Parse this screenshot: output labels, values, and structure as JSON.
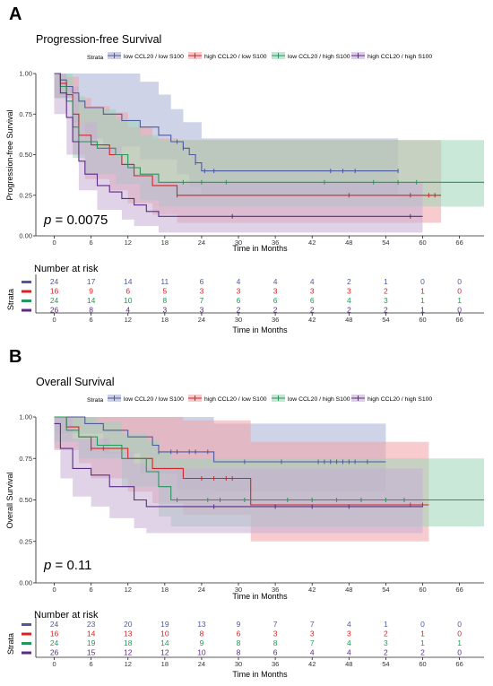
{
  "panels": [
    {
      "letter": "A",
      "title": "Progression-free Survival",
      "legend_label": "Strata",
      "ylabel": "Progression-free Survival",
      "pvalue_prefix": "p",
      "pvalue_text": " = 0.0075",
      "risk_title": "Number at risk",
      "risk_ylabel": "Strata",
      "xlabel": "Time in Months",
      "risk_xlabel": "Time in Months"
    },
    {
      "letter": "B",
      "title": "Overall Survival",
      "legend_label": "Strata",
      "ylabel": "Overall Survival",
      "pvalue_prefix": "p",
      "pvalue_text": " = 0.11",
      "risk_title": "Number at risk",
      "risk_ylabel": "Strata",
      "xlabel": "Time in Months",
      "risk_xlabel": "Time in Months"
    }
  ],
  "chart_data": [
    {
      "type": "line",
      "title": "Progression-free Survival",
      "xlabel": "Time in Months",
      "ylabel": "Progression-free Survival",
      "xlim": [
        -3,
        70
      ],
      "ylim": [
        0,
        1
      ],
      "xticks": [
        0,
        6,
        12,
        18,
        24,
        30,
        36,
        42,
        48,
        54,
        60,
        66
      ],
      "yticks": [
        0.0,
        0.25,
        0.5,
        0.75,
        1.0
      ],
      "ytick_labels": [
        "0.00",
        "0.25",
        "0.50",
        "0.75",
        "1.00"
      ],
      "legend_position": "top",
      "series": [
        {
          "name": "low CCL20 / low S100",
          "color": "#4e5a9c",
          "fill": "#a6aed5",
          "steps": [
            [
              0,
              1.0
            ],
            [
              1,
              0.96
            ],
            [
              2,
              0.92
            ],
            [
              3,
              0.88
            ],
            [
              4,
              0.83
            ],
            [
              5,
              0.79
            ],
            [
              8,
              0.75
            ],
            [
              11,
              0.71
            ],
            [
              14,
              0.67
            ],
            [
              17,
              0.62
            ],
            [
              19,
              0.58
            ],
            [
              21,
              0.54
            ],
            [
              22,
              0.5
            ],
            [
              23,
              0.45
            ],
            [
              24,
              0.4
            ]
          ],
          "end": 56,
          "censors": [
            20,
            21,
            23,
            24.5,
            26,
            45,
            47,
            49,
            56
          ],
          "lower": [
            [
              0,
              0.85
            ],
            [
              3,
              0.7
            ],
            [
              5,
              0.6
            ],
            [
              8,
              0.55
            ],
            [
              14,
              0.47
            ],
            [
              20,
              0.38
            ],
            [
              22,
              0.3
            ],
            [
              24,
              0.25
            ]
          ],
          "upper": [
            [
              0,
              1.0
            ],
            [
              14,
              0.95
            ],
            [
              17,
              0.87
            ],
            [
              19,
              0.78
            ],
            [
              21,
              0.7
            ],
            [
              24,
              0.6
            ]
          ],
          "risk": [
            24,
            17,
            14,
            11,
            6,
            4,
            4,
            4,
            2,
            1,
            0,
            0
          ]
        },
        {
          "name": "high CCL20 / low S100",
          "color": "#d62424",
          "fill": "#f3a3a8",
          "steps": [
            [
              0,
              1.0
            ],
            [
              1,
              0.94
            ],
            [
              2,
              0.87
            ],
            [
              3,
              0.75
            ],
            [
              4,
              0.62
            ],
            [
              6,
              0.56
            ],
            [
              9,
              0.5
            ],
            [
              11,
              0.44
            ],
            [
              13,
              0.37
            ],
            [
              16,
              0.31
            ],
            [
              20,
              0.25
            ]
          ],
          "end": 63,
          "censors": [
            20,
            48,
            58,
            61,
            62
          ],
          "lower": [
            [
              0,
              0.85
            ],
            [
              3,
              0.5
            ],
            [
              5,
              0.35
            ],
            [
              9,
              0.28
            ],
            [
              12,
              0.2
            ],
            [
              16,
              0.13
            ],
            [
              20,
              0.08
            ]
          ],
          "upper": [
            [
              0,
              1.0
            ],
            [
              2,
              0.98
            ],
            [
              4,
              0.85
            ],
            [
              6,
              0.8
            ],
            [
              9,
              0.76
            ],
            [
              12,
              0.67
            ],
            [
              16,
              0.6
            ],
            [
              20,
              0.59
            ]
          ],
          "risk": [
            16,
            9,
            6,
            5,
            3,
            3,
            3,
            3,
            3,
            2,
            1,
            0
          ]
        },
        {
          "name": "low CCL20 / high S100",
          "color": "#27965c",
          "fill": "#9dd5b6",
          "steps": [
            [
              0,
              1.0
            ],
            [
              1,
              0.92
            ],
            [
              2,
              0.83
            ],
            [
              3,
              0.67
            ],
            [
              4,
              0.58
            ],
            [
              7,
              0.54
            ],
            [
              10,
              0.5
            ],
            [
              12,
              0.42
            ],
            [
              14,
              0.38
            ],
            [
              17,
              0.33
            ]
          ],
          "end": 70,
          "censors": [
            21,
            24,
            28,
            44,
            52,
            56,
            59
          ],
          "lower": [
            [
              0,
              0.85
            ],
            [
              3,
              0.48
            ],
            [
              5,
              0.38
            ],
            [
              10,
              0.32
            ],
            [
              14,
              0.22
            ],
            [
              17,
              0.18
            ]
          ],
          "upper": [
            [
              0,
              1.0
            ],
            [
              3,
              0.86
            ],
            [
              5,
              0.78
            ],
            [
              10,
              0.72
            ],
            [
              14,
              0.62
            ],
            [
              17,
              0.59
            ]
          ],
          "risk": [
            24,
            14,
            10,
            8,
            7,
            6,
            6,
            6,
            4,
            3,
            1,
            1
          ]
        },
        {
          "name": "high CCL20 / high S100",
          "color": "#5b2b86",
          "fill": "#c7aed6",
          "steps": [
            [
              0,
              1.0
            ],
            [
              1,
              0.88
            ],
            [
              2,
              0.73
            ],
            [
              3,
              0.58
            ],
            [
              4,
              0.46
            ],
            [
              5,
              0.38
            ],
            [
              7,
              0.31
            ],
            [
              9,
              0.27
            ],
            [
              11,
              0.23
            ],
            [
              13,
              0.19
            ],
            [
              15,
              0.15
            ],
            [
              17,
              0.12
            ]
          ],
          "end": 60,
          "censors": [
            29,
            58
          ],
          "lower": [
            [
              0,
              0.75
            ],
            [
              2,
              0.5
            ],
            [
              4,
              0.28
            ],
            [
              7,
              0.16
            ],
            [
              11,
              0.1
            ],
            [
              13,
              0.06
            ],
            [
              17,
              0.02
            ]
          ],
          "upper": [
            [
              0,
              1.0
            ],
            [
              2,
              0.92
            ],
            [
              4,
              0.7
            ],
            [
              7,
              0.55
            ],
            [
              11,
              0.45
            ],
            [
              13,
              0.38
            ],
            [
              17,
              0.33
            ]
          ],
          "risk": [
            26,
            8,
            4,
            3,
            3,
            2,
            2,
            2,
            2,
            2,
            1,
            0
          ]
        }
      ]
    },
    {
      "type": "line",
      "title": "Overall Survival",
      "xlabel": "Time in Months",
      "ylabel": "Overall Survival",
      "xlim": [
        -3,
        70
      ],
      "ylim": [
        0,
        1
      ],
      "xticks": [
        0,
        6,
        12,
        18,
        24,
        30,
        36,
        42,
        48,
        54,
        60,
        66
      ],
      "yticks": [
        0.0,
        0.25,
        0.5,
        0.75,
        1.0
      ],
      "ytick_labels": [
        "0.00",
        "0.25",
        "0.50",
        "0.75",
        "1.00"
      ],
      "legend_position": "top",
      "series": [
        {
          "name": "low CCL20 / low S100",
          "color": "#4e5a9c",
          "fill": "#a6aed5",
          "steps": [
            [
              0,
              1.0
            ],
            [
              5,
              0.96
            ],
            [
              8,
              0.92
            ],
            [
              12,
              0.88
            ],
            [
              16,
              0.83
            ],
            [
              17,
              0.79
            ],
            [
              26,
              0.73
            ]
          ],
          "end": 54,
          "censors": [
            17,
            19,
            20,
            22,
            23,
            25,
            31,
            37,
            43,
            44,
            45,
            46,
            47,
            48,
            49,
            51
          ],
          "lower": [
            [
              0,
              0.9
            ],
            [
              8,
              0.78
            ],
            [
              14,
              0.66
            ],
            [
              20,
              0.56
            ],
            [
              26,
              0.55
            ]
          ],
          "upper": [
            [
              0,
              1.0
            ],
            [
              26,
              0.96
            ]
          ],
          "risk": [
            24,
            23,
            20,
            19,
            13,
            9,
            7,
            7,
            4,
            1,
            0,
            0
          ]
        },
        {
          "name": "high CCL20 / low S100",
          "color": "#d62424",
          "fill": "#f3a3a8",
          "steps": [
            [
              0,
              1.0
            ],
            [
              2,
              0.94
            ],
            [
              4,
              0.88
            ],
            [
              6,
              0.81
            ],
            [
              12,
              0.75
            ],
            [
              16,
              0.69
            ],
            [
              21,
              0.63
            ],
            [
              32,
              0.47
            ]
          ],
          "end": 61,
          "censors": [
            6,
            8,
            24,
            26,
            28,
            29,
            58,
            60
          ],
          "lower": [
            [
              0,
              0.8
            ],
            [
              4,
              0.72
            ],
            [
              6,
              0.63
            ],
            [
              12,
              0.55
            ],
            [
              16,
              0.48
            ],
            [
              21,
              0.41
            ],
            [
              32,
              0.25
            ]
          ],
          "upper": [
            [
              0,
              1.0
            ],
            [
              21,
              0.98
            ],
            [
              32,
              0.85
            ]
          ],
          "risk": [
            16,
            14,
            13,
            10,
            8,
            6,
            3,
            3,
            3,
            2,
            1,
            0
          ]
        },
        {
          "name": "low CCL20 / high S100",
          "color": "#27965c",
          "fill": "#9dd5b6",
          "steps": [
            [
              0,
              1.0
            ],
            [
              2,
              0.92
            ],
            [
              4,
              0.88
            ],
            [
              7,
              0.83
            ],
            [
              11,
              0.75
            ],
            [
              15,
              0.67
            ],
            [
              17,
              0.58
            ],
            [
              19,
              0.5
            ]
          ],
          "end": 70,
          "censors": [
            20,
            25,
            27,
            31,
            38,
            42,
            46,
            50,
            54,
            57
          ],
          "lower": [
            [
              0,
              0.85
            ],
            [
              4,
              0.75
            ],
            [
              11,
              0.58
            ],
            [
              17,
              0.4
            ],
            [
              19,
              0.34
            ]
          ],
          "upper": [
            [
              0,
              1.0
            ],
            [
              7,
              0.97
            ],
            [
              11,
              0.9
            ],
            [
              15,
              0.86
            ],
            [
              17,
              0.79
            ],
            [
              19,
              0.75
            ]
          ],
          "risk": [
            24,
            19,
            18,
            14,
            9,
            8,
            8,
            7,
            4,
            3,
            1,
            1
          ]
        },
        {
          "name": "high CCL20 / high S100",
          "color": "#5b2b86",
          "fill": "#c7aed6",
          "steps": [
            [
              0,
              0.96
            ],
            [
              1,
              0.81
            ],
            [
              3,
              0.69
            ],
            [
              6,
              0.65
            ],
            [
              9,
              0.58
            ],
            [
              13,
              0.5
            ],
            [
              15,
              0.46
            ]
          ],
          "end": 60,
          "censors": [
            26,
            36,
            42,
            48
          ],
          "lower": [
            [
              0,
              0.81
            ],
            [
              1,
              0.63
            ],
            [
              3,
              0.52
            ],
            [
              6,
              0.46
            ],
            [
              9,
              0.39
            ],
            [
              13,
              0.33
            ],
            [
              15,
              0.3
            ]
          ],
          "upper": [
            [
              0,
              1.0
            ],
            [
              3,
              0.87
            ],
            [
              9,
              0.79
            ],
            [
              13,
              0.72
            ],
            [
              15,
              0.69
            ]
          ],
          "risk": [
            26,
            15,
            12,
            12,
            10,
            8,
            6,
            4,
            4,
            2,
            2,
            0
          ]
        }
      ]
    }
  ]
}
